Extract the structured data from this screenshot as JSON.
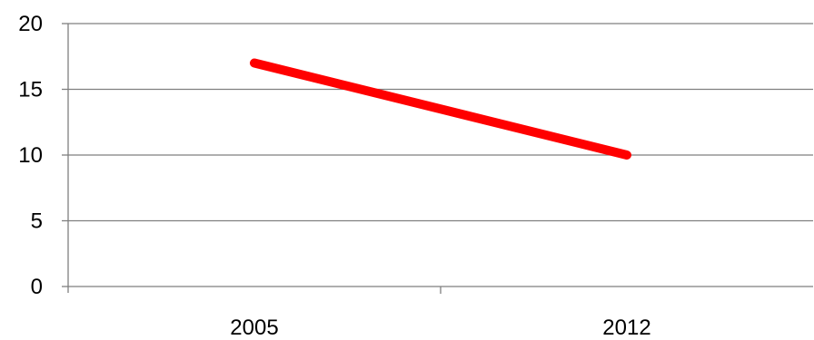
{
  "chart_data": {
    "type": "line",
    "categories": [
      "2005",
      "2012"
    ],
    "series": [
      {
        "values": [
          17,
          10
        ]
      }
    ],
    "title": "",
    "xlabel": "",
    "ylabel": "",
    "ylim": [
      0,
      20
    ],
    "yticks": [
      "0",
      "5",
      "10",
      "15",
      "20"
    ],
    "grid": true,
    "legend": "none",
    "colors": {
      "series": "#ff0000",
      "grid": "#7f7f7f",
      "axis": "#7f7f7f"
    }
  }
}
